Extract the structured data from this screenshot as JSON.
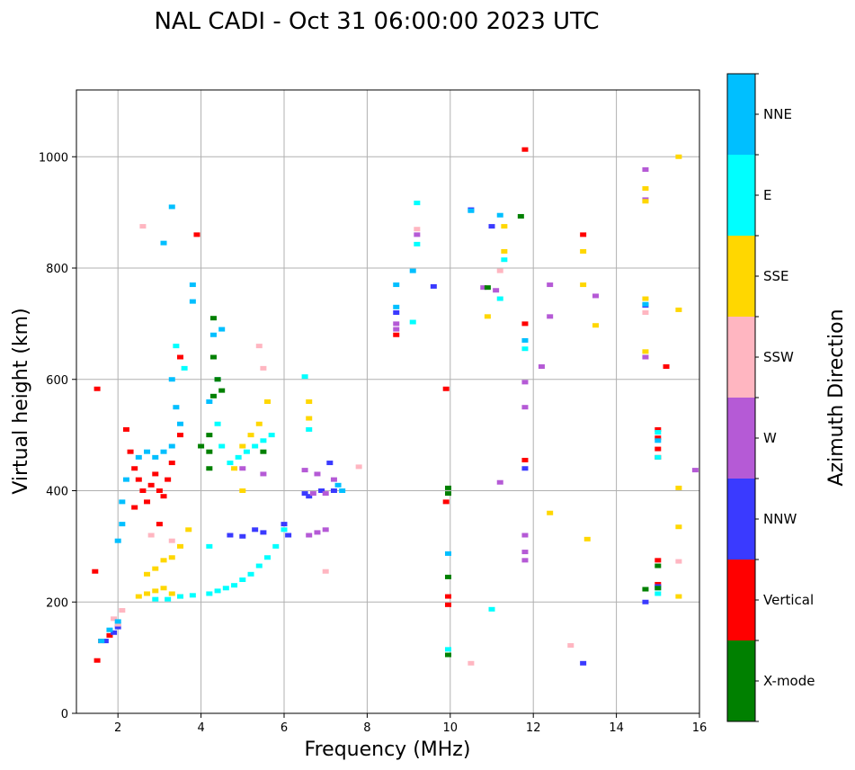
{
  "chart_data": {
    "type": "scatter",
    "title": "NAL CADI - Oct 31 06:00:00 2023 UTC",
    "xlabel": "Frequency (MHz)",
    "ylabel": "Virtual height (km)",
    "xlim": [
      1,
      16
    ],
    "ylim": [
      0,
      1120
    ],
    "xticks": [
      2,
      4,
      6,
      8,
      10,
      12,
      14,
      16
    ],
    "yticks": [
      0,
      200,
      400,
      600,
      800,
      1000
    ],
    "grid": true,
    "colorbar": {
      "title": "Azimuth Direction",
      "categories": [
        {
          "name": "X-mode",
          "color": "#008000"
        },
        {
          "name": "Vertical",
          "color": "#ff0000"
        },
        {
          "name": "NNW",
          "color": "#3a3aff"
        },
        {
          "name": "W",
          "color": "#b55ad6"
        },
        {
          "name": "SSW",
          "color": "#ffb6c1"
        },
        {
          "name": "SSE",
          "color": "#ffd700"
        },
        {
          "name": "E",
          "color": "#00ffff"
        },
        {
          "name": "NNE",
          "color": "#00bfff"
        }
      ]
    },
    "series": [
      {
        "name": "Vertical",
        "points": [
          [
            1.5,
            583
          ],
          [
            1.45,
            255
          ],
          [
            1.5,
            95
          ],
          [
            1.6,
            130
          ],
          [
            1.8,
            140
          ],
          [
            2.2,
            510
          ],
          [
            2.3,
            470
          ],
          [
            2.4,
            440
          ],
          [
            2.5,
            420
          ],
          [
            2.6,
            400
          ],
          [
            2.7,
            380
          ],
          [
            2.8,
            410
          ],
          [
            2.9,
            430
          ],
          [
            3.0,
            400
          ],
          [
            3.1,
            390
          ],
          [
            3.2,
            420
          ],
          [
            3.5,
            640
          ],
          [
            3.5,
            500
          ],
          [
            3.3,
            450
          ],
          [
            3.9,
            860
          ],
          [
            2.4,
            370
          ],
          [
            3.0,
            340
          ],
          [
            9.9,
            583
          ],
          [
            9.9,
            380
          ],
          [
            9.95,
            210
          ],
          [
            9.95,
            195
          ],
          [
            11.8,
            1013
          ],
          [
            11.8,
            700
          ],
          [
            11.8,
            455
          ],
          [
            13.2,
            860
          ],
          [
            15.0,
            510
          ],
          [
            15.0,
            495
          ],
          [
            15.0,
            475
          ],
          [
            15.0,
            460
          ],
          [
            15.0,
            275
          ],
          [
            15.0,
            232
          ],
          [
            15.2,
            623
          ],
          [
            8.7,
            680
          ]
        ]
      },
      {
        "name": "NNW",
        "points": [
          [
            1.7,
            130
          ],
          [
            1.9,
            145
          ],
          [
            2.0,
            155
          ],
          [
            4.7,
            320
          ],
          [
            5.0,
            318
          ],
          [
            5.3,
            330
          ],
          [
            5.5,
            325
          ],
          [
            6.0,
            340
          ],
          [
            6.1,
            320
          ],
          [
            6.5,
            395
          ],
          [
            6.6,
            390
          ],
          [
            6.9,
            400
          ],
          [
            7.1,
            450
          ],
          [
            7.2,
            400
          ],
          [
            8.7,
            720
          ],
          [
            9.6,
            767
          ],
          [
            10.5,
            905
          ],
          [
            11.0,
            875
          ],
          [
            11.8,
            440
          ],
          [
            13.2,
            90
          ],
          [
            14.7,
            733
          ],
          [
            14.7,
            200
          ],
          [
            15.0,
            228
          ]
        ]
      },
      {
        "name": "W",
        "points": [
          [
            6.6,
            320
          ],
          [
            6.8,
            325
          ],
          [
            7.0,
            330
          ],
          [
            6.5,
            437
          ],
          [
            6.8,
            430
          ],
          [
            7.2,
            420
          ],
          [
            6.7,
            395
          ],
          [
            7.0,
            395
          ],
          [
            8.7,
            700
          ],
          [
            8.7,
            690
          ],
          [
            9.2,
            860
          ],
          [
            10.8,
            765
          ],
          [
            11.1,
            760
          ],
          [
            11.2,
            415
          ],
          [
            11.8,
            595
          ],
          [
            11.8,
            550
          ],
          [
            11.8,
            320
          ],
          [
            11.8,
            290
          ],
          [
            11.8,
            275
          ],
          [
            12.2,
            623
          ],
          [
            12.4,
            770
          ],
          [
            12.4,
            713
          ],
          [
            13.5,
            750
          ],
          [
            14.7,
            977
          ],
          [
            14.7,
            923
          ],
          [
            14.7,
            640
          ],
          [
            15.9,
            437
          ],
          [
            5.0,
            440
          ],
          [
            5.5,
            430
          ]
        ]
      },
      {
        "name": "SSW",
        "points": [
          [
            1.9,
            170
          ],
          [
            2.1,
            185
          ],
          [
            2.0,
            160
          ],
          [
            2.6,
            875
          ],
          [
            2.8,
            320
          ],
          [
            3.3,
            310
          ],
          [
            5.4,
            660
          ],
          [
            5.5,
            620
          ],
          [
            7.0,
            255
          ],
          [
            7.8,
            443
          ],
          [
            9.2,
            870
          ],
          [
            10.5,
            90
          ],
          [
            11.2,
            795
          ],
          [
            12.9,
            122
          ],
          [
            15.5,
            273
          ],
          [
            14.7,
            720
          ]
        ]
      },
      {
        "name": "SSE",
        "points": [
          [
            2.5,
            210
          ],
          [
            2.7,
            215
          ],
          [
            2.9,
            220
          ],
          [
            3.1,
            225
          ],
          [
            3.3,
            215
          ],
          [
            3.5,
            210
          ],
          [
            2.7,
            250
          ],
          [
            2.9,
            260
          ],
          [
            3.1,
            275
          ],
          [
            3.3,
            280
          ],
          [
            3.5,
            300
          ],
          [
            3.7,
            330
          ],
          [
            4.8,
            440
          ],
          [
            5.0,
            480
          ],
          [
            5.2,
            500
          ],
          [
            5.4,
            520
          ],
          [
            5.6,
            560
          ],
          [
            5.0,
            400
          ],
          [
            6.6,
            530
          ],
          [
            6.6,
            560
          ],
          [
            10.9,
            713
          ],
          [
            11.3,
            875
          ],
          [
            11.3,
            830
          ],
          [
            12.4,
            360
          ],
          [
            13.2,
            830
          ],
          [
            13.2,
            770
          ],
          [
            13.3,
            313
          ],
          [
            13.5,
            697
          ],
          [
            14.7,
            943
          ],
          [
            14.7,
            920
          ],
          [
            14.7,
            745
          ],
          [
            14.7,
            650
          ],
          [
            15.5,
            1000
          ],
          [
            15.5,
            725
          ],
          [
            15.5,
            405
          ],
          [
            15.5,
            335
          ],
          [
            15.5,
            210
          ]
        ]
      },
      {
        "name": "E",
        "points": [
          [
            2.9,
            205
          ],
          [
            3.2,
            205
          ],
          [
            3.5,
            210
          ],
          [
            3.8,
            212
          ],
          [
            4.2,
            215
          ],
          [
            4.4,
            220
          ],
          [
            4.6,
            225
          ],
          [
            4.8,
            230
          ],
          [
            5.0,
            240
          ],
          [
            5.2,
            250
          ],
          [
            5.4,
            265
          ],
          [
            5.6,
            280
          ],
          [
            5.8,
            300
          ],
          [
            6.0,
            330
          ],
          [
            4.2,
            300
          ],
          [
            4.4,
            520
          ],
          [
            4.5,
            480
          ],
          [
            4.7,
            450
          ],
          [
            4.9,
            460
          ],
          [
            5.1,
            470
          ],
          [
            5.3,
            480
          ],
          [
            5.5,
            490
          ],
          [
            5.7,
            500
          ],
          [
            6.5,
            605
          ],
          [
            6.6,
            510
          ],
          [
            3.6,
            620
          ],
          [
            3.4,
            660
          ],
          [
            9.2,
            917
          ],
          [
            9.2,
            843
          ],
          [
            9.1,
            703
          ],
          [
            11.0,
            187
          ],
          [
            11.2,
            745
          ],
          [
            11.3,
            815
          ],
          [
            11.8,
            655
          ],
          [
            15.0,
            505
          ],
          [
            15.0,
            460
          ],
          [
            15.0,
            215
          ],
          [
            9.95,
            115
          ]
        ]
      },
      {
        "name": "NNE",
        "points": [
          [
            1.6,
            130
          ],
          [
            1.8,
            150
          ],
          [
            2.0,
            165
          ],
          [
            2.0,
            310
          ],
          [
            2.1,
            340
          ],
          [
            2.1,
            380
          ],
          [
            2.2,
            420
          ],
          [
            2.5,
            460
          ],
          [
            2.7,
            470
          ],
          [
            2.9,
            460
          ],
          [
            3.1,
            470
          ],
          [
            3.3,
            480
          ],
          [
            3.1,
            845
          ],
          [
            3.3,
            910
          ],
          [
            3.3,
            600
          ],
          [
            3.4,
            550
          ],
          [
            3.5,
            520
          ],
          [
            3.8,
            770
          ],
          [
            3.8,
            740
          ],
          [
            4.2,
            560
          ],
          [
            4.4,
            600
          ],
          [
            4.5,
            690
          ],
          [
            4.3,
            680
          ],
          [
            7.3,
            410
          ],
          [
            7.4,
            400
          ],
          [
            8.7,
            770
          ],
          [
            8.7,
            730
          ],
          [
            9.1,
            795
          ],
          [
            9.95,
            287
          ],
          [
            10.5,
            903
          ],
          [
            11.2,
            895
          ],
          [
            11.8,
            670
          ],
          [
            14.7,
            735
          ],
          [
            15.0,
            225
          ],
          [
            15.0,
            490
          ]
        ]
      },
      {
        "name": "X-mode",
        "points": [
          [
            4.0,
            480
          ],
          [
            4.2,
            500
          ],
          [
            4.2,
            470
          ],
          [
            4.3,
            640
          ],
          [
            4.3,
            570
          ],
          [
            4.4,
            600
          ],
          [
            4.5,
            580
          ],
          [
            4.3,
            710
          ],
          [
            4.2,
            440
          ],
          [
            5.5,
            470
          ],
          [
            9.95,
            405
          ],
          [
            9.95,
            395
          ],
          [
            9.95,
            105
          ],
          [
            9.95,
            245
          ],
          [
            11.7,
            893
          ],
          [
            10.9,
            765
          ],
          [
            15.0,
            265
          ],
          [
            15.0,
            225
          ],
          [
            14.7,
            223
          ]
        ]
      }
    ]
  }
}
